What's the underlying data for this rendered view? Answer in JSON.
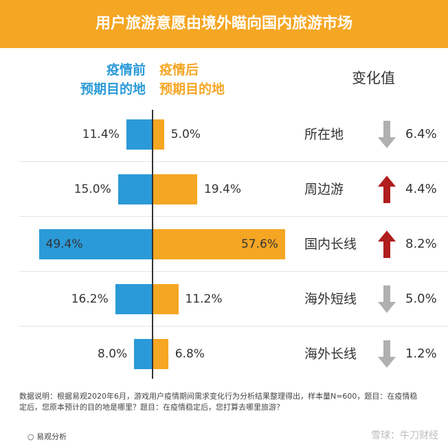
{
  "header": {
    "title": "用户旅游意愿由境外瞄向国内旅游市场"
  },
  "legend": {
    "before_line1": "疫情前",
    "before_line2": "预期目的地",
    "after_line1": "疫情后",
    "after_line2": "预期目的地"
  },
  "change_header": "变化值",
  "colors": {
    "before": "#2a9ad8",
    "after": "#f5a623",
    "down": "#b0b0b0",
    "up": "#b01e1e"
  },
  "chart_data": {
    "type": "bar",
    "orientation": "horizontal-diverging",
    "categories": [
      "所在地",
      "周边游",
      "国内长线",
      "海外短线",
      "海外长线"
    ],
    "series": [
      {
        "name": "疫情前预期目的地",
        "values": [
          11.4,
          15.0,
          49.4,
          16.2,
          8.0
        ],
        "labels": [
          "11.4%",
          "15.0%",
          "49.4%",
          "16.2%",
          "8.0%"
        ]
      },
      {
        "name": "疫情后预期目的地",
        "values": [
          5.0,
          19.4,
          57.6,
          11.2,
          6.8
        ],
        "labels": [
          "5.0%",
          "19.4%",
          "57.6%",
          "11.2%",
          "6.8%"
        ]
      }
    ],
    "change": [
      {
        "direction": "down",
        "label": "6.4%"
      },
      {
        "direction": "up",
        "label": "4.4%"
      },
      {
        "direction": "up",
        "label": "8.2%"
      },
      {
        "direction": "down",
        "label": "5.0%"
      },
      {
        "direction": "down",
        "label": "1.2%"
      }
    ]
  },
  "footer": {
    "note": "数据说明：根据易观2020年6月，游戏用户疫情期间需求变化行为分析结果整理得出，样本量N=600，题目：在疫情稳定后，您原本预计的目的地是哪里？题目：在疫情稳定后，您打算去哪里旅游？",
    "source": "○ 易观分析",
    "watermark": "雪球：牛刀财经"
  }
}
